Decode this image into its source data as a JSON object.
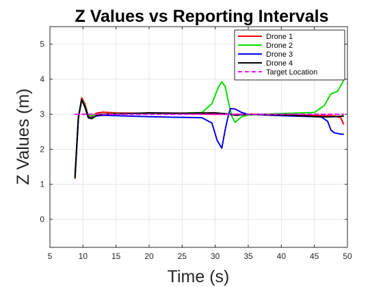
{
  "chart_data": {
    "type": "line",
    "title": "Z Values vs Reporting Intervals",
    "xlabel": "Time (s)",
    "ylabel": "Z Values (m)",
    "xlim": [
      5,
      50
    ],
    "ylim": [
      -0.8,
      5.5
    ],
    "xticks": [
      5,
      10,
      15,
      20,
      25,
      30,
      35,
      40,
      45,
      50
    ],
    "yticks": [
      0,
      1,
      2,
      3,
      4,
      5
    ],
    "grid": true,
    "legend_position": "top-right",
    "series": [
      {
        "name": "Drone 1",
        "color": "#ff0000",
        "dash": "",
        "x": [
          8.8,
          9.3,
          9.8,
          10.3,
          10.8,
          11.3,
          12.0,
          13.0,
          15.0,
          20.0,
          25.0,
          30.0,
          33.0,
          35.0,
          40.0,
          45.0,
          48.0,
          49.0,
          49.4
        ],
        "y": [
          1.17,
          2.9,
          3.47,
          3.3,
          2.96,
          2.92,
          3.03,
          3.06,
          3.04,
          3.02,
          3.02,
          3.0,
          3.0,
          3.0,
          2.99,
          2.97,
          2.95,
          2.9,
          2.72
        ]
      },
      {
        "name": "Drone 2",
        "color": "#00dd00",
        "dash": "",
        "x": [
          8.8,
          9.3,
          9.8,
          10.3,
          10.8,
          11.3,
          12.0,
          15.0,
          20.0,
          25.0,
          28.0,
          29.5,
          30.5,
          31.0,
          31.5,
          32.0,
          32.5,
          33.0,
          34.0,
          35.0,
          40.0,
          45.0,
          46.5,
          47.5,
          48.5,
          49.0,
          49.4
        ],
        "y": [
          1.2,
          2.95,
          3.43,
          3.25,
          2.96,
          2.95,
          3.0,
          3.02,
          3.02,
          3.03,
          3.05,
          3.3,
          3.78,
          3.92,
          3.8,
          3.35,
          2.95,
          2.77,
          2.93,
          2.98,
          3.02,
          3.05,
          3.25,
          3.58,
          3.65,
          3.82,
          3.95
        ]
      },
      {
        "name": "Drone 3",
        "color": "#0000ee",
        "dash": "",
        "x": [
          8.8,
          9.3,
          9.8,
          10.3,
          10.8,
          11.3,
          12.0,
          13.0,
          15.0,
          20.0,
          25.0,
          28.0,
          29.5,
          30.3,
          31.0,
          31.5,
          32.0,
          32.3,
          33.0,
          34.0,
          35.0,
          40.0,
          45.0,
          46.0,
          47.0,
          47.5,
          48.0,
          49.0,
          49.4
        ],
        "y": [
          1.25,
          2.92,
          3.4,
          3.22,
          2.92,
          2.88,
          2.95,
          2.97,
          2.96,
          2.93,
          2.91,
          2.9,
          2.75,
          2.25,
          2.03,
          2.55,
          2.98,
          3.16,
          3.15,
          3.05,
          3.0,
          2.96,
          2.93,
          2.93,
          2.8,
          2.55,
          2.47,
          2.43,
          2.43
        ]
      },
      {
        "name": "Drone 4",
        "color": "#000000",
        "dash": "",
        "x": [
          8.8,
          9.3,
          9.8,
          10.3,
          10.8,
          11.3,
          12.0,
          13.0,
          15.0,
          20.0,
          25.0,
          30.0,
          32.0,
          33.0,
          35.0,
          40.0,
          44.0,
          46.0,
          48.0,
          49.4
        ],
        "y": [
          1.2,
          2.88,
          3.42,
          3.2,
          2.9,
          2.87,
          2.96,
          3.0,
          3.01,
          3.04,
          3.03,
          3.04,
          3.01,
          2.97,
          3.0,
          2.98,
          2.95,
          2.92,
          2.93,
          2.95
        ]
      },
      {
        "name": "Target Location",
        "color": "#ff00ff",
        "dash": "6,4",
        "x": [
          8.8,
          49.4
        ],
        "y": [
          3.0,
          3.0
        ]
      }
    ]
  }
}
